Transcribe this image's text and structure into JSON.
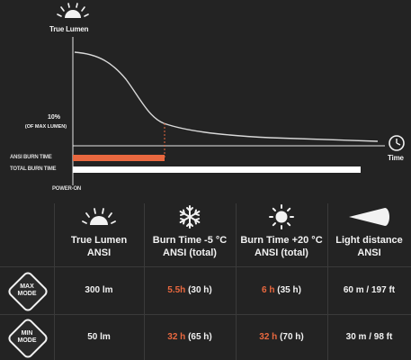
{
  "chart": {
    "y_axis_label": "True Lumen",
    "x_axis_label": "Time",
    "reference_label_line1": "10%",
    "reference_label_line2": "(OF MAX LUMEN)",
    "ansi_burn_label": "ANSI BURN TIME",
    "total_burn_label": "TOTAL BURN TIME",
    "power_on_label": "POWER-ON",
    "accent_color": "#e9683f",
    "curve_color": "#d9d9d9"
  },
  "table": {
    "columns": [
      {
        "icon": "sun-rays-icon",
        "line1": "True Lumen",
        "line2": "ANSI"
      },
      {
        "icon": "snowflake-icon",
        "line1": "Burn Time -5 °C",
        "line2": "ANSI (total)"
      },
      {
        "icon": "sun-icon",
        "line1": "Burn Time +20 °C",
        "line2": "ANSI (total)"
      },
      {
        "icon": "beam-icon",
        "line1": "Light distance",
        "line2": "ANSI"
      }
    ],
    "rows": [
      {
        "mode_line1": "MAX",
        "mode_line2": "MODE",
        "lumen": "300 lm",
        "cold_ansi": "5.5h",
        "cold_total": "(30 h)",
        "warm_ansi": "6 h",
        "warm_total": "(35 h)",
        "distance": "60 m / 197 ft"
      },
      {
        "mode_line1": "MIN",
        "mode_line2": "MODE",
        "lumen": "50 lm",
        "cold_ansi": "32 h",
        "cold_total": "(65 h)",
        "warm_ansi": "32 h",
        "warm_total": "(70 h)",
        "distance": "30 m / 98 ft"
      }
    ]
  }
}
